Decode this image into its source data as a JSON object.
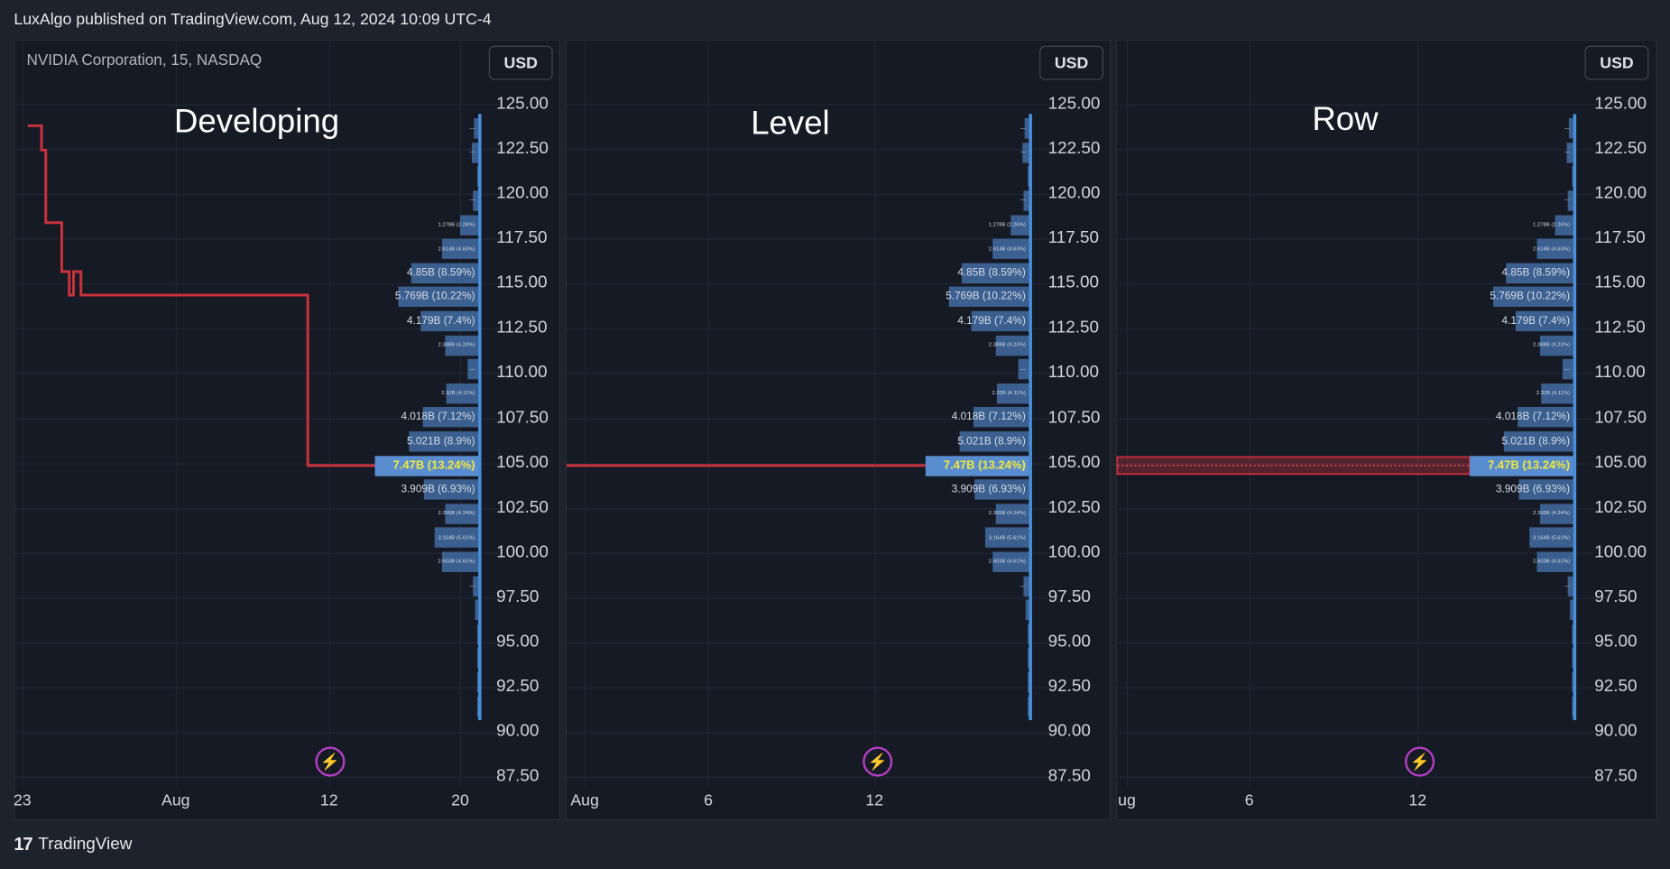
{
  "header": {
    "published": "LuxAlgo published on TradingView.com, Aug 12, 2024 10:09 UTC-4"
  },
  "footer": {
    "brand": "TradingView",
    "logo_icon": "tradingview-logo-icon"
  },
  "symbol": "NVIDIA Corporation, 15, NASDAQ",
  "currency": "USD",
  "colors": {
    "background": "#161a25",
    "bar": "#3b5f8e",
    "poc_bar": "#5a8dd0",
    "poc_text": "#f2e93a",
    "poc_line": "#c8323c",
    "profile_edge": "#4a8fd8",
    "alert_icon": "#b43fc4"
  },
  "price_axis": [
    "125.00",
    "122.50",
    "120.00",
    "117.50",
    "115.00",
    "112.50",
    "110.00",
    "107.50",
    "105.00",
    "102.50",
    "100.00",
    "97.50",
    "95.00",
    "92.50",
    "90.00",
    "87.50"
  ],
  "profile_rows": [
    {
      "pct": 0.6,
      "label": "—"
    },
    {
      "pct": 0.8,
      "label": "—"
    },
    {
      "pct": 0.05,
      "label": ""
    },
    {
      "pct": 0.7,
      "label": "—"
    },
    {
      "pct": 2.26,
      "label": "1.278B (2.26%)"
    },
    {
      "pct": 4.63,
      "label": "2.614B (4.63%)"
    },
    {
      "pct": 8.59,
      "label": "4.85B (8.59%)"
    },
    {
      "pct": 10.22,
      "label": "5.769B (10.22%)"
    },
    {
      "pct": 7.4,
      "label": "4.179B (7.4%)"
    },
    {
      "pct": 4.23,
      "label": "2.388B (4.23%)"
    },
    {
      "pct": 1.3,
      "label": "—"
    },
    {
      "pct": 4.11,
      "label": "2.32B (4.11%)"
    },
    {
      "pct": 7.12,
      "label": "4.018B (7.12%)"
    },
    {
      "pct": 8.9,
      "label": "5.021B (8.9%)"
    },
    {
      "pct": 13.24,
      "label": "7.47B (13.24%)",
      "poc": true
    },
    {
      "pct": 6.93,
      "label": "3.909B (6.93%)"
    },
    {
      "pct": 4.24,
      "label": "2.395B (4.24%)"
    },
    {
      "pct": 5.61,
      "label": "3.164B (5.61%)"
    },
    {
      "pct": 4.61,
      "label": "2.603B (4.61%)"
    },
    {
      "pct": 0.7,
      "label": "—"
    },
    {
      "pct": 0.4,
      "label": ""
    },
    {
      "pct": 0.2,
      "label": ""
    },
    {
      "pct": 0.2,
      "label": ""
    },
    {
      "pct": 0.2,
      "label": ""
    },
    {
      "pct": 0.2,
      "label": ""
    }
  ],
  "poc_price": 105.0,
  "panels": [
    {
      "title": "Developing",
      "mode": "developing",
      "time_labels": [
        "23",
        "Aug",
        "12",
        "20"
      ]
    },
    {
      "title": "Level",
      "mode": "level",
      "time_labels": [
        "Aug",
        "6",
        "12"
      ]
    },
    {
      "title": "Row",
      "mode": "row",
      "time_labels": [
        "ug",
        "6",
        "12"
      ]
    }
  ],
  "alert_icon": "lightning-icon"
}
